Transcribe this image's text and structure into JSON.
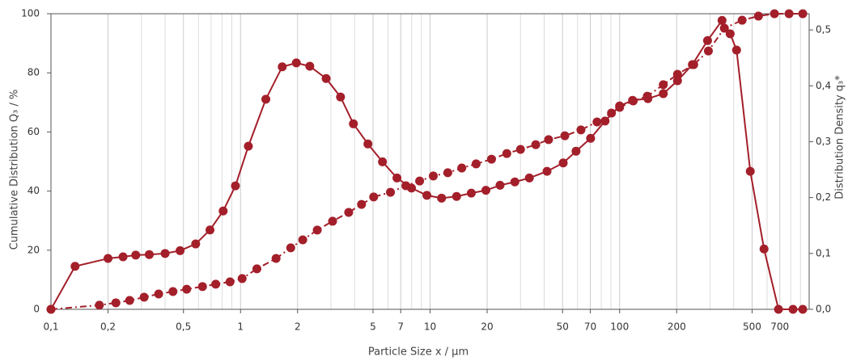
{
  "chart_data": {
    "type": "line",
    "x_label": "Particle Size x / µm",
    "y_label": "Cumulative Distribution Q₃ / %",
    "y2_label": "Distribution Density q₃*",
    "log_x": true,
    "grid": true,
    "xlim": [
      0.1,
      1000
    ],
    "xticks": [
      {
        "value": 0.1,
        "label": "0,1"
      },
      {
        "value": 0.2,
        "label": "0,2"
      },
      {
        "value": 0.5,
        "label": "0,5"
      },
      1,
      2,
      5,
      7,
      10,
      20,
      50,
      70,
      100,
      200,
      500,
      700
    ],
    "x_minor_ticks": [
      0.3,
      0.4,
      0.6,
      0.7,
      0.8,
      0.9,
      3,
      4,
      6,
      8,
      9,
      30,
      40,
      60,
      80,
      90,
      300,
      400,
      600,
      800,
      900
    ],
    "ylim": [
      0,
      100
    ],
    "yticks": [
      0,
      20,
      40,
      60,
      80,
      100
    ],
    "y2lim": [
      0,
      0.529
    ],
    "y2ticks": [
      {
        "value": 0,
        "label": "0,0"
      },
      {
        "value": 0.1,
        "label": "0,1"
      },
      {
        "value": 0.2,
        "label": "0,2"
      },
      {
        "value": 0.3,
        "label": "0,3"
      },
      {
        "value": 0.4,
        "label": "0,4"
      },
      {
        "value": 0.5,
        "label": "0,5"
      }
    ],
    "series": [
      {
        "color": "#a31f2a",
        "dash": "dashdot",
        "axis": "y",
        "x": [
          0.1,
          0.18,
          0.22,
          0.26,
          0.31,
          0.37,
          0.44,
          0.52,
          0.63,
          0.74,
          0.88,
          1.02,
          1.22,
          1.54,
          1.84,
          2.13,
          2.54,
          3.06,
          3.72,
          4.35,
          5.04,
          6.18,
          7.45,
          8.81,
          10.4,
          12.4,
          14.7,
          17.5,
          21.1,
          25.4,
          30,
          36.1,
          42.2,
          51.4,
          62.5,
          76,
          90.6,
          100,
          118,
          140,
          170,
          202,
          246,
          294,
          357,
          443,
          540,
          656,
          783,
          925
        ],
        "values": [
          0,
          1.4,
          2.2,
          3.0,
          4.1,
          5.2,
          6.0,
          6.8,
          7.7,
          8.5,
          9.3,
          10.4,
          13.7,
          17.2,
          20.8,
          23.5,
          26.8,
          29.8,
          32.8,
          35.5,
          38.0,
          39.6,
          41.8,
          43.4,
          45.1,
          46.2,
          47.8,
          49.2,
          50.8,
          52.7,
          54.1,
          55.7,
          57.4,
          58.7,
          60.7,
          63.4,
          66.4,
          68.3,
          70.5,
          72.1,
          76.0,
          79.5,
          82.8,
          87.4,
          95.1,
          97.8,
          99.2,
          100,
          100,
          100
        ]
      },
      {
        "color": "#a31f2a",
        "dash": "solid",
        "axis": "y2",
        "x": [
          0.1,
          0.134,
          0.2,
          0.24,
          0.28,
          0.33,
          0.4,
          0.48,
          0.58,
          0.69,
          0.81,
          0.94,
          1.1,
          1.36,
          1.66,
          1.97,
          2.32,
          2.83,
          3.37,
          3.94,
          4.7,
          5.61,
          6.69,
          7.98,
          9.62,
          11.5,
          13.8,
          16.5,
          19.7,
          23.4,
          28,
          33.4,
          41.4,
          50.4,
          58.9,
          70.3,
          83.8,
          100,
          117,
          141,
          170,
          202,
          242,
          291,
          347,
          383,
          414,
          489,
          578,
          689,
          822,
          925
        ],
        "values": [
          0,
          0.077,
          0.091,
          0.094,
          0.097,
          0.098,
          0.1,
          0.105,
          0.117,
          0.142,
          0.176,
          0.221,
          0.292,
          0.376,
          0.434,
          0.441,
          0.435,
          0.413,
          0.38,
          0.332,
          0.296,
          0.264,
          0.235,
          0.217,
          0.204,
          0.199,
          0.202,
          0.208,
          0.213,
          0.222,
          0.228,
          0.235,
          0.247,
          0.262,
          0.283,
          0.306,
          0.337,
          0.364,
          0.374,
          0.377,
          0.386,
          0.409,
          0.438,
          0.481,
          0.517,
          0.493,
          0.464,
          0.247,
          0.108,
          0,
          0,
          0
        ]
      }
    ]
  }
}
